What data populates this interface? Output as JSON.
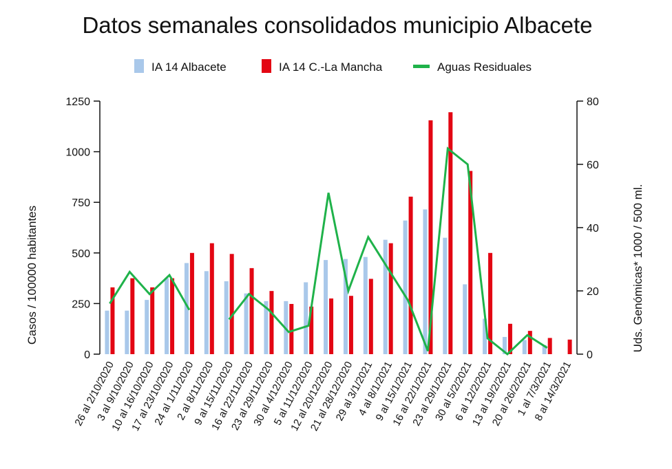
{
  "chart_data": {
    "type": "bar",
    "title": "Datos semanales consolidados municipio Albacete",
    "ylabel_left": "Casos / 100000 habitantes",
    "ylabel_right": "Uds. Genómicas* 1000 / 500 ml.",
    "xlabel": "",
    "ylim_left": [
      0,
      1250
    ],
    "ylim_right": [
      0,
      80
    ],
    "yticks_left": [
      "0",
      "250",
      "500",
      "750",
      "1000",
      "1250"
    ],
    "yticks_right": [
      "0",
      "20",
      "40",
      "60",
      "80"
    ],
    "grid": false,
    "legend_position": "top",
    "categories": [
      "26 al 2/10/2020",
      "3 al 9/10/2020",
      "10 al 16/10/2020",
      "17 al 23/10/2020",
      "24 al 1/11/2020",
      "2 al 8/11/2020",
      "9 al 15/11/2020",
      "16 al 22/11/2020",
      "23 al 29/11/2020",
      "30 al 4/12/2020",
      "5 al 11/12/2020",
      "12 al 20/12/2020",
      "21 al 28/12/2020",
      "29 al 3/1/2021",
      "4 al 8/1/2021",
      "9 al 15/1/2021",
      "16 al 22/1/2021",
      "23 al 29/1/2021",
      "30 al 5/2/2021",
      "6 al 12/2/2021",
      "13 al 19/2/2021",
      "20 al 26/2/2021",
      "1 al 7/3/2021",
      "8 al 14/3/2021"
    ],
    "series": [
      {
        "name": "IA 14 Albacete",
        "type": "bar",
        "axis": "left",
        "color": "#a9c8ea",
        "values": [
          215,
          215,
          268,
          375,
          450,
          410,
          360,
          300,
          262,
          262,
          355,
          465,
          470,
          480,
          565,
          660,
          715,
          575,
          345,
          175,
          85,
          70,
          45,
          0
        ]
      },
      {
        "name": "IA 14 C.-La Mancha",
        "type": "bar",
        "axis": "left",
        "color": "#e30613",
        "values": [
          330,
          375,
          330,
          375,
          500,
          548,
          495,
          425,
          312,
          248,
          235,
          275,
          288,
          372,
          548,
          778,
          1155,
          1195,
          905,
          500,
          150,
          115,
          80,
          72
        ]
      },
      {
        "name": "Aguas Residuales",
        "type": "line",
        "axis": "right",
        "color": "#1fb24a",
        "values": [
          16,
          26,
          19,
          25,
          14,
          null,
          11,
          19,
          14,
          7,
          9,
          51,
          20,
          37,
          27,
          17,
          1,
          65,
          60,
          5,
          0,
          6,
          2,
          null
        ]
      }
    ]
  }
}
